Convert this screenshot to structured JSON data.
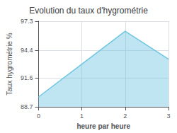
{
  "chart_data": {
    "type": "area",
    "title": "Evolution du taux d'hygrométrie",
    "xlabel": "heure par heure",
    "ylabel": "Taux hygrométrie %",
    "x": [
      0,
      1,
      2,
      3
    ],
    "values": [
      89.7,
      93.0,
      96.3,
      93.5
    ],
    "color": "#6ec6e0",
    "xlim": [
      0,
      3
    ],
    "xticks": [
      0,
      1,
      2,
      3
    ],
    "ylim": [
      88.7,
      97.3
    ],
    "yticks": [
      88.7,
      91.6,
      94.4,
      97.3
    ],
    "grid": true
  }
}
